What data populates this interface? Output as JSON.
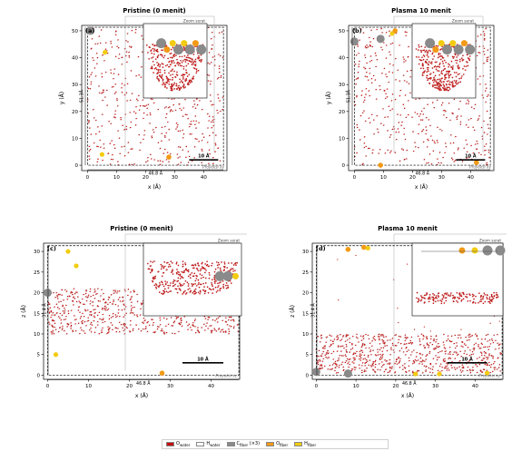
{
  "colors": {
    "O_water": "#c21010",
    "H_water": "#ffffff",
    "C_fiber": "#8a8a8a",
    "O_fiber": "#f29a17",
    "H_fiber": "#f2cc10"
  },
  "legend": {
    "items": [
      {
        "label": "O",
        "sub": "water",
        "suffix": "",
        "color": "#c21010"
      },
      {
        "label": "H",
        "sub": "water",
        "suffix": "",
        "color": "#ffffff"
      },
      {
        "label": "C",
        "sub": "fiber",
        "suffix": " (×3)",
        "color": "#8a8a8a"
      },
      {
        "label": "O",
        "sub": "fiber",
        "suffix": "",
        "color": "#f29a17"
      },
      {
        "label": "H",
        "sub": "fiber",
        "suffix": "",
        "color": "#f2cc10"
      }
    ]
  },
  "chart_data": [
    {
      "type": "scatter",
      "panel": "(a)",
      "title": "Pristine (0 menit)",
      "xlabel": "x (Å)",
      "ylabel": "y (Å)",
      "xlim": [
        -2,
        48
      ],
      "ylim": [
        -2,
        52
      ],
      "xticks": [
        0,
        10,
        20,
        30,
        40
      ],
      "yticks": [
        0,
        10,
        20,
        30,
        40,
        50
      ],
      "box_width_label": "46.8 Å",
      "box_height_label": "51.3Å",
      "scalebar_label": "10 Å",
      "inset_label": "Zoom serat",
      "projection_label": "Proyeksi xy",
      "water": {
        "x_range": [
          0,
          46.8
        ],
        "y_range": [
          0,
          51.3
        ]
      },
      "fiber_atoms": [
        {
          "x": 6,
          "y": 42,
          "type": "H_fiber"
        },
        {
          "x": 5,
          "y": 4,
          "type": "H_fiber"
        },
        {
          "x": 28,
          "y": 3,
          "type": "O_fiber"
        },
        {
          "x": 1,
          "y": 50,
          "type": "C_fiber"
        }
      ]
    },
    {
      "type": "scatter",
      "panel": "(b)",
      "title": "Plasma 10 menit",
      "xlabel": "x (Å)",
      "ylabel": "y (Å)",
      "xlim": [
        -2,
        48
      ],
      "ylim": [
        -2,
        52
      ],
      "xticks": [
        0,
        10,
        20,
        30,
        40
      ],
      "yticks": [
        0,
        10,
        20,
        30,
        40,
        50
      ],
      "box_width_label": "46.8 Å",
      "box_height_label": "51.3Å",
      "scalebar_label": "10 Å",
      "inset_label": "Zoom serat",
      "projection_label": "Proyeksi xy",
      "water": {
        "x_range": [
          0,
          46.8
        ],
        "y_range": [
          0,
          51.3
        ]
      },
      "fiber_atoms": [
        {
          "x": 0,
          "y": 46,
          "type": "C_fiber"
        },
        {
          "x": 9,
          "y": 47,
          "type": "C_fiber"
        },
        {
          "x": 13,
          "y": 49,
          "type": "H_fiber"
        },
        {
          "x": 14,
          "y": 50,
          "type": "O_fiber"
        },
        {
          "x": 9,
          "y": 0,
          "type": "O_fiber"
        },
        {
          "x": 42,
          "y": 1,
          "type": "O_fiber"
        }
      ]
    },
    {
      "type": "scatter",
      "panel": "(c)",
      "title": "Pristine (0 menit)",
      "xlabel": "x (Å)",
      "ylabel": "z (Å)",
      "xlim": [
        -1,
        47
      ],
      "ylim": [
        -1,
        32
      ],
      "xticks": [
        0,
        10,
        20,
        30,
        40
      ],
      "yticks": [
        0,
        5,
        10,
        15,
        20,
        25,
        30
      ],
      "box_width_label": "46.8 Å",
      "box_height_label": "31.4 Å",
      "scalebar_label": "10 Å",
      "inset_label": "Zoom serat",
      "projection_label": "Proyeksi xz",
      "water": {
        "x_range": [
          0,
          46.8
        ],
        "z_range": [
          10,
          21
        ]
      },
      "fiber_atoms": [
        {
          "x": 0,
          "y": 20,
          "type": "C_fiber"
        },
        {
          "x": 5,
          "y": 30,
          "type": "H_fiber"
        },
        {
          "x": 7,
          "y": 26.5,
          "type": "H_fiber"
        },
        {
          "x": 2,
          "y": 5,
          "type": "H_fiber"
        },
        {
          "x": 28,
          "y": 0.5,
          "type": "O_fiber"
        }
      ]
    },
    {
      "type": "scatter",
      "panel": "(d)",
      "title": "Plasma 10 menit",
      "xlabel": "x (Å)",
      "ylabel": "z (Å)",
      "xlim": [
        -1,
        47
      ],
      "ylim": [
        -1,
        32
      ],
      "xticks": [
        0,
        10,
        20,
        30,
        40
      ],
      "yticks": [
        0,
        5,
        10,
        15,
        20,
        25,
        30
      ],
      "box_width_label": "46.8 Å",
      "box_height_label": "31.4 Å",
      "scalebar_label": "10 Å",
      "inset_label": "Zoom serat",
      "projection_label": "Proyeksi xz",
      "water": {
        "x_range": [
          0,
          46.8
        ],
        "z_range": [
          0.5,
          10
        ]
      },
      "fiber_atoms": [
        {
          "x": 0,
          "y": 0.8,
          "type": "C_fiber"
        },
        {
          "x": 8,
          "y": 0.4,
          "type": "C_fiber"
        },
        {
          "x": 8,
          "y": 30.5,
          "type": "O_fiber"
        },
        {
          "x": 12,
          "y": 31,
          "type": "O_fiber"
        },
        {
          "x": 13,
          "y": 30.8,
          "type": "H_fiber"
        },
        {
          "x": 25,
          "y": 0.3,
          "type": "H_fiber"
        },
        {
          "x": 31,
          "y": 0.3,
          "type": "H_fiber"
        },
        {
          "x": 43,
          "y": 0.5,
          "type": "H_fiber"
        }
      ]
    }
  ]
}
